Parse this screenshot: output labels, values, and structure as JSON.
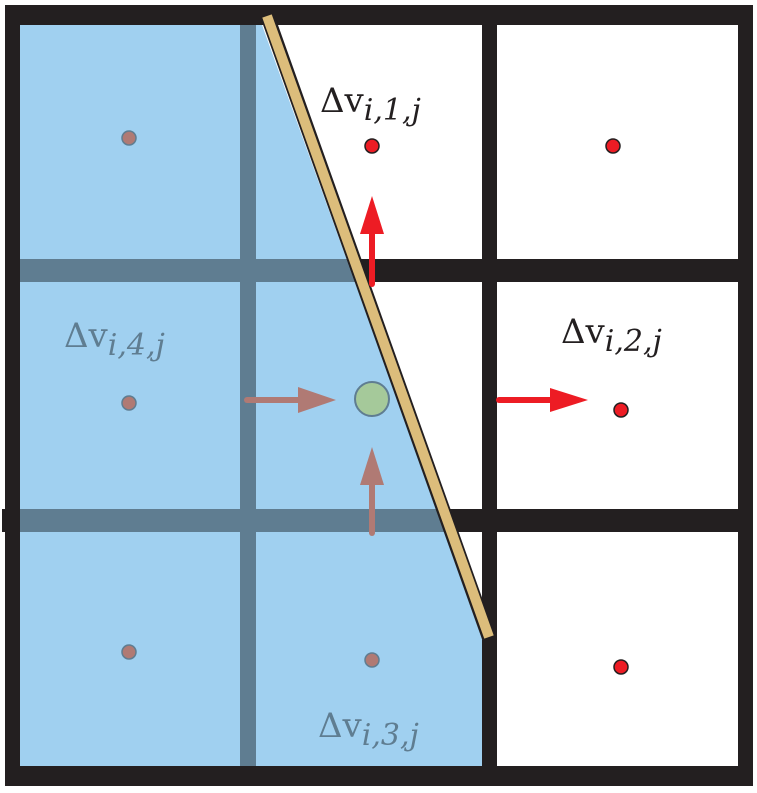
{
  "labels": {
    "cell_1": {
      "delta": "Δv",
      "sub": "i,1,j"
    },
    "cell_2": {
      "delta": "Δv",
      "sub": "i,2,j"
    },
    "cell_3": {
      "delta": "Δv",
      "sub": "i,3,j"
    },
    "cell_4": {
      "delta": "Δv",
      "sub": "i,4,j"
    }
  },
  "colors": {
    "grid": "#231f20",
    "fluid": "#a0d0f0",
    "fluid_grid": "#5f7d91",
    "interface": "#fdd98c",
    "active_point": "#ed1c24",
    "masked_point": "#b07a74",
    "center_point": "#a5c99a",
    "masked_label": "#5f7d91"
  }
}
